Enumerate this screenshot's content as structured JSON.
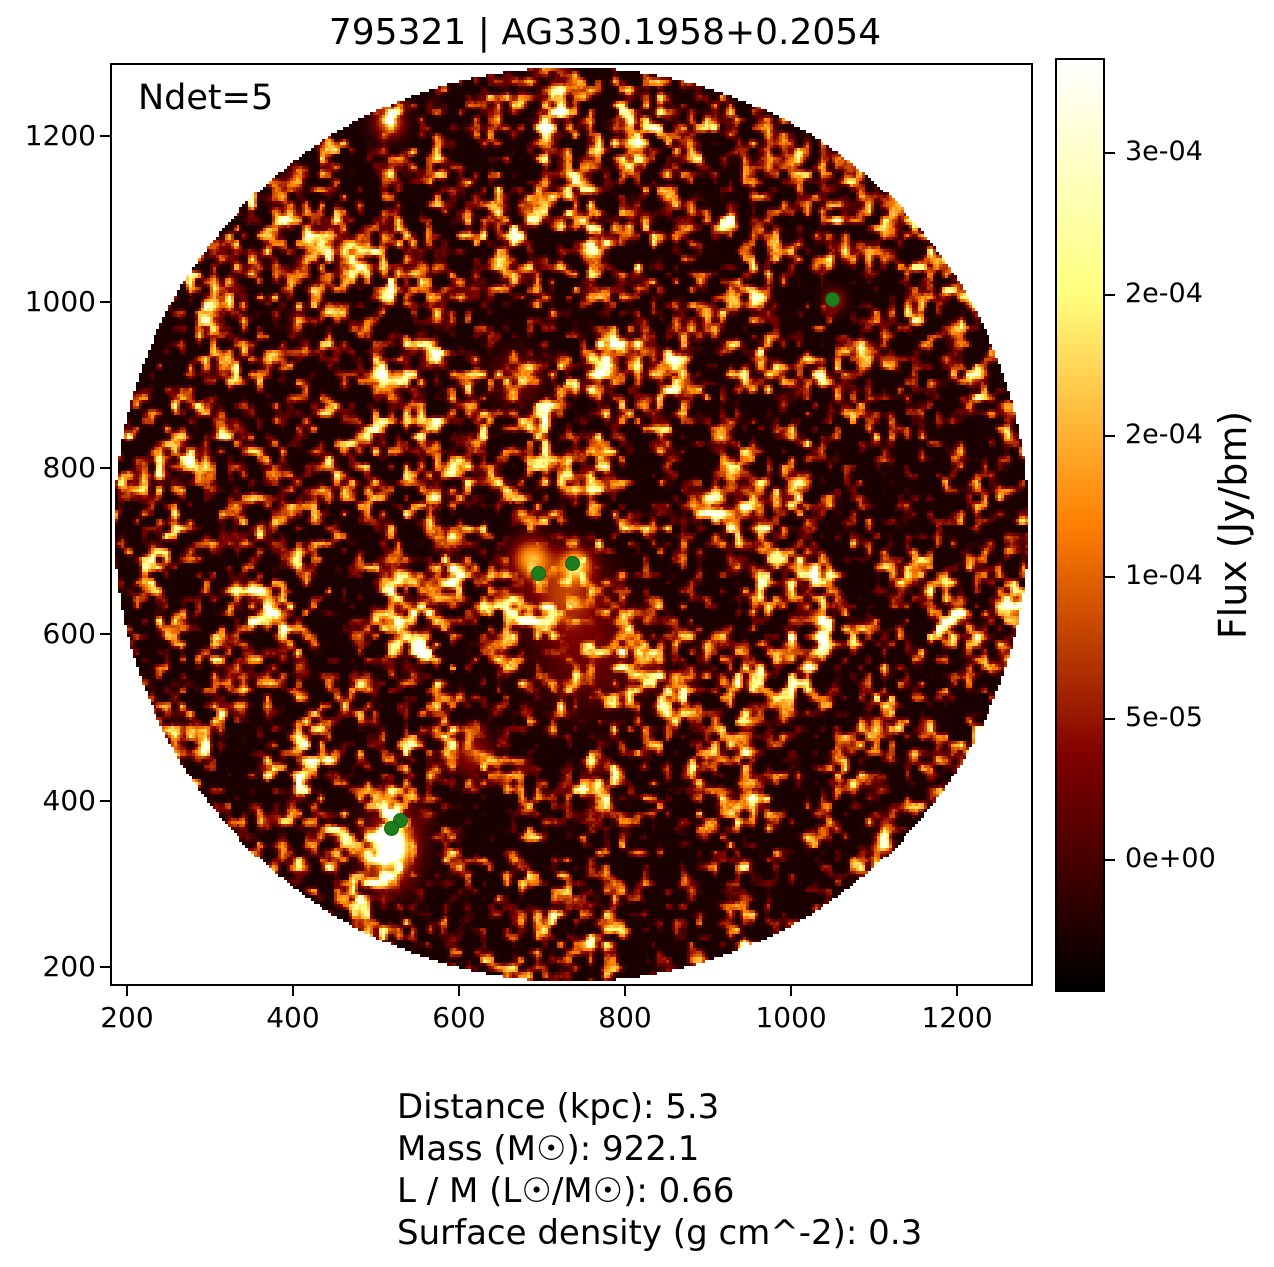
{
  "chart_data": {
    "type": "heatmap",
    "title": "795321 | AG330.1958+0.2054",
    "inset_annotation": "Ndet=5",
    "xlabel": "",
    "ylabel": "",
    "xlim": [
      182,
      1289
    ],
    "ylim": [
      179,
      1286
    ],
    "xticks": [
      200,
      400,
      600,
      800,
      1000,
      1200
    ],
    "yticks": [
      200,
      400,
      600,
      800,
      1000,
      1200
    ],
    "grid": false,
    "colormap": "afmhot",
    "image_description": "circular mottled flux noise map (black/orange/yellow filaments) inside white square axes, pixelated edge",
    "colorbar": {
      "label": "Flux (Jy/bm)",
      "vmin": -4.6e-05,
      "vmax": 0.000283,
      "ticks": [
        {
          "value": 0.00025,
          "label": "3e-04"
        },
        {
          "value": 0.0002,
          "label": "2e-04"
        },
        {
          "value": 0.00015,
          "label": "2e-04"
        },
        {
          "value": 0.0001,
          "label": "1e-04"
        },
        {
          "value": 5e-05,
          "label": "5e-05"
        },
        {
          "value": 0.0,
          "label": "0e+00"
        }
      ]
    },
    "detections": {
      "count": 5,
      "marker_color": "#1e7e1e",
      "points": [
        {
          "x": 696,
          "y": 674
        },
        {
          "x": 737,
          "y": 685
        },
        {
          "x": 1050,
          "y": 1004
        },
        {
          "x": 529,
          "y": 376
        },
        {
          "x": 519,
          "y": 366
        }
      ]
    },
    "footer_lines": [
      "Distance (kpc): 5.3",
      "Mass (M☉): 922.1",
      "L / M (L☉/M☉): 0.66",
      "Surface density (g cm^-2): 0.3"
    ]
  }
}
